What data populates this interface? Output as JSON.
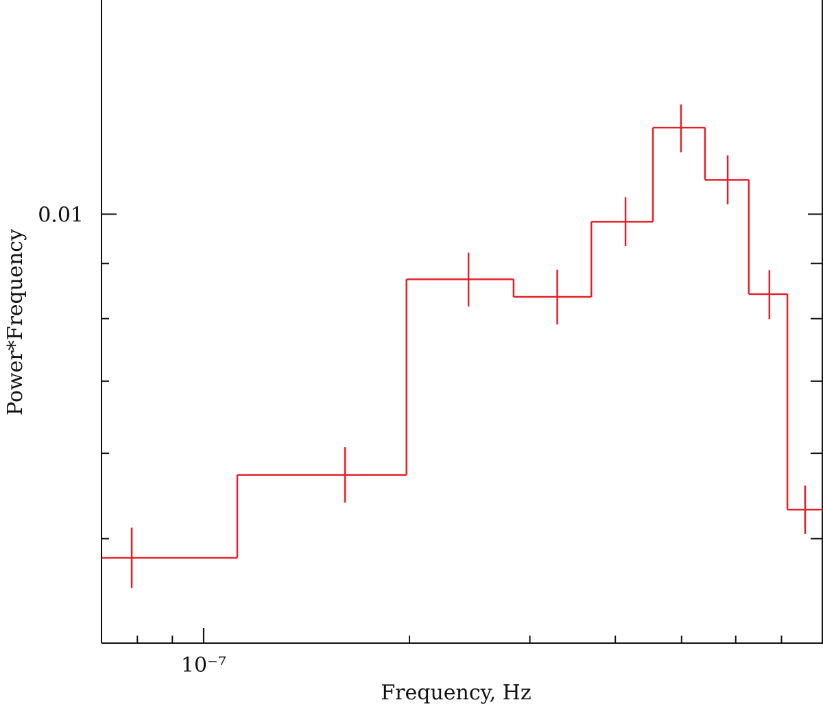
{
  "chart_data": {
    "type": "step",
    "xlabel": "Frequency, Hz",
    "ylabel": "Power*Frequency",
    "xscale": "log",
    "yscale": "log",
    "color": "#e3202a",
    "xlim": [
      7.09e-08,
      8.05e-07
    ],
    "ylim": [
      0.004,
      0.0158
    ],
    "xticks": [
      {
        "value": 1e-07,
        "label": "10⁻⁷"
      }
    ],
    "xminor": [
      8e-08,
      9e-08,
      2e-07,
      3e-07,
      4e-07,
      5e-07,
      6e-07,
      7e-07
    ],
    "yticks": [
      0.01
    ],
    "yminor": [
      0.004,
      0.005,
      0.006,
      0.007,
      0.008,
      0.009
    ],
    "bins": [
      7.09e-08,
      1.12e-07,
      1.98e-07,
      2.84e-07,
      3.69e-07,
      4.54e-07,
      5.41e-07,
      6.27e-07,
      7.14e-07,
      8.05e-07
    ],
    "x": [
      7.85e-08,
      1.61e-07,
      2.44e-07,
      3.29e-07,
      4.14e-07,
      4.99e-07,
      5.84e-07,
      6.72e-07,
      7.58e-07
    ],
    "values": [
      0.0048,
      0.00573,
      0.0087,
      0.00838,
      0.00984,
      0.01203,
      0.01076,
      0.00843,
      0.00532
    ],
    "lower": [
      0.0045,
      0.0054,
      0.00821,
      0.0079,
      0.00934,
      0.01141,
      0.01021,
      0.00799,
      0.00505
    ],
    "upper": [
      0.00512,
      0.00608,
      0.00921,
      0.00888,
      0.01037,
      0.01264,
      0.01134,
      0.00887,
      0.0056
    ]
  }
}
